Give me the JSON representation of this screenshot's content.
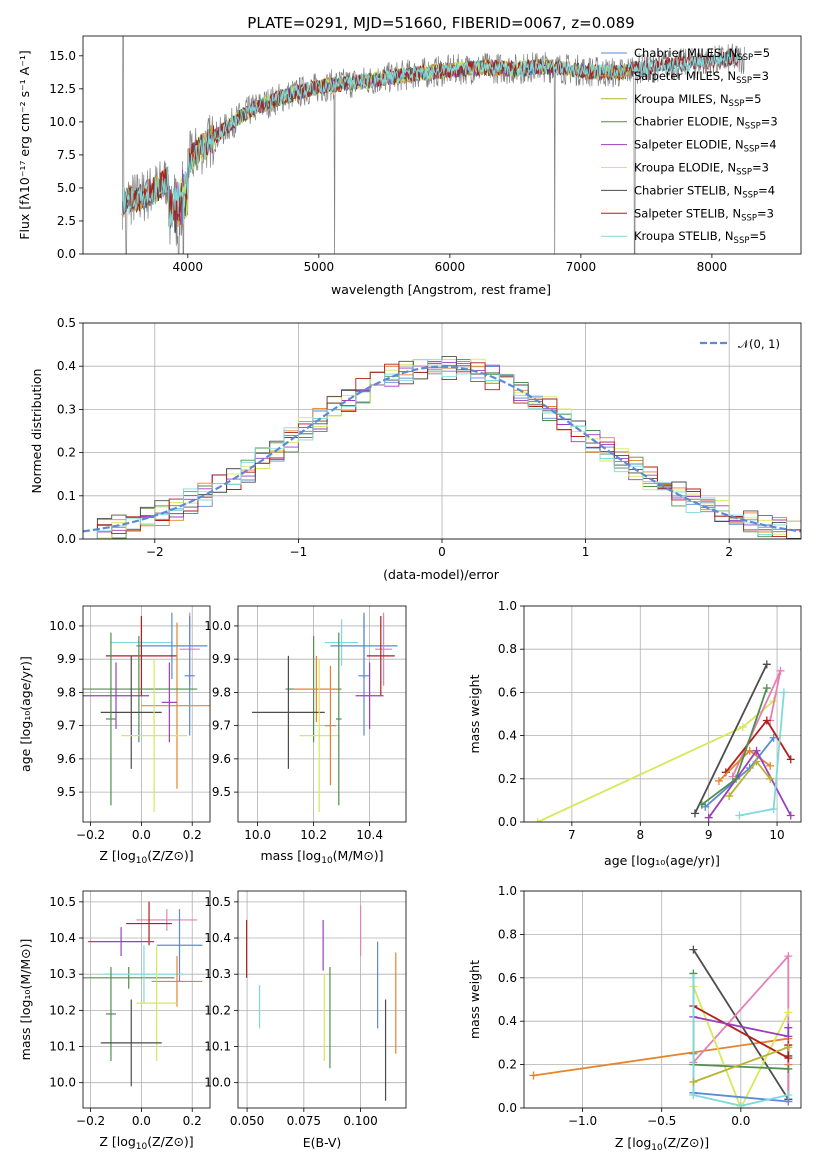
{
  "colors": {
    "chabrier_miles": "#5b8ad6",
    "salpeter_miles": "#e6852b",
    "kroupa_miles": "#b8b22e",
    "chabrier_elodie": "#4f8f4f",
    "salpeter_elodie": "#9a3fbf",
    "kroupa_elodie": "#d7e85a",
    "chabrier_stelib": "#4d4d4d",
    "salpeter_stelib": "#b01e1e",
    "kroupa_stelib": "#7fd9dc",
    "pink": "#e77fb5",
    "normal": "#5b8ad6",
    "data": "#808080"
  },
  "chart_data": [
    {
      "id": "spectrum",
      "type": "line",
      "title": "PLATE=0291, MJD=51660, FIBERID=0067, z=0.089",
      "xlabel": "wavelength [Angstrom, rest frame]",
      "ylabel": "Flux [fλ10⁻¹⁷ erg cm⁻² s⁻¹ A⁻¹]",
      "xlim": [
        3200,
        8680
      ],
      "ylim": [
        0,
        16.5
      ],
      "xticks": [
        "4000",
        "5000",
        "6000",
        "7000",
        "8000"
      ],
      "yticks": [
        "0.0",
        "2.5",
        "5.0",
        "7.5",
        "10.0",
        "12.5",
        "15.0"
      ],
      "legend_position": "right",
      "legend": [
        {
          "lib": "Chabrier MILES, N",
          "sub": "SSP",
          "eq": "=5"
        },
        {
          "lib": "Salpeter MILES, N",
          "sub": "SSP",
          "eq": "=3"
        },
        {
          "lib": "Kroupa MILES, N",
          "sub": "SSP",
          "eq": "=5"
        },
        {
          "lib": "Chabrier ELODIE, N",
          "sub": "SSP",
          "eq": "=3"
        },
        {
          "lib": "Salpeter ELODIE, N",
          "sub": "SSP",
          "eq": "=4"
        },
        {
          "lib": "Kroupa ELODIE, N",
          "sub": "SSP",
          "eq": "=3"
        },
        {
          "lib": "Chabrier STELIB, N",
          "sub": "SSP",
          "eq": "=4"
        },
        {
          "lib": "Salpeter STELIB, N",
          "sub": "SSP",
          "eq": "=3"
        },
        {
          "lib": "Kroupa STELIB, N",
          "sub": "SSP",
          "eq": "=5"
        }
      ],
      "continuum": {
        "x": [
          3500,
          3650,
          3800,
          3900,
          4000,
          4100,
          4200,
          4300,
          4400,
          4500,
          4700,
          4900,
          5100,
          5300,
          5500,
          5700,
          5900,
          6100,
          6300,
          6500,
          6700,
          6900,
          7100,
          7300,
          7400,
          7500,
          7600,
          7800,
          8000,
          8200
        ],
        "y": [
          4.0,
          4.3,
          5.2,
          6.2,
          7.0,
          8.0,
          8.8,
          9.6,
          10.4,
          11.0,
          11.8,
          12.4,
          12.8,
          13.0,
          13.3,
          13.6,
          13.8,
          14.0,
          14.1,
          14.0,
          14.2,
          14.0,
          13.8,
          13.7,
          14.0,
          14.1,
          14.2,
          14.4,
          14.6,
          14.8
        ]
      }
    },
    {
      "id": "residuals",
      "type": "histogram",
      "xlabel": "(data-model)/error",
      "ylabel": "Normed distribution",
      "xlim": [
        -2.5,
        2.5
      ],
      "ylim": [
        0,
        0.5
      ],
      "xticks": [
        "−2",
        "−1",
        "0",
        "1",
        "2"
      ],
      "yticks": [
        "0.0",
        "0.1",
        "0.2",
        "0.3",
        "0.4",
        "0.5"
      ],
      "legend": "𝒩(0, 1)",
      "legend_position": "top-right",
      "bin_width": 0.1,
      "normal": {
        "mu": 0,
        "sigma": 1
      }
    },
    {
      "id": "age-vs-Z",
      "type": "scatter",
      "xlabel_main": "Z [log",
      "xlabel_sub": "10",
      "xlabel_tail": "(Z/Z⊙)]",
      "ylabel": "age  [log₁₀(age/yr)]",
      "xlim": [
        -0.23,
        0.27
      ],
      "ylim": [
        9.41,
        10.06
      ],
      "xticks": [
        "−0.2",
        "0.0",
        "0.2"
      ],
      "yticks": [
        "9.5",
        "9.6",
        "9.7",
        "9.8",
        "9.9",
        "10.0"
      ],
      "points": [
        {
          "x": 0.0,
          "y": 9.95,
          "xerr": 0.12,
          "yerr": 0.07,
          "c": "kroupa_stelib"
        },
        {
          "x": 0.12,
          "y": 9.94,
          "xerr": 0.14,
          "yerr": 0.1,
          "c": "chabrier_miles"
        },
        {
          "x": 0.19,
          "y": 9.93,
          "xerr": 0.04,
          "yerr": 0.11,
          "c": "pink"
        },
        {
          "x": 0.0,
          "y": 9.91,
          "xerr": 0.14,
          "yerr": 0.12,
          "c": "salpeter_stelib"
        },
        {
          "x": 0.19,
          "y": 9.85,
          "xerr": 0.02,
          "yerr": 0.18,
          "c": "chabrier_miles"
        },
        {
          "x": 0.14,
          "y": 9.76,
          "xerr": 0.14,
          "yerr": 0.25,
          "c": "salpeter_miles"
        },
        {
          "x": -0.01,
          "y": 9.81,
          "xerr": 0.23,
          "yerr": 0.16,
          "c": "chabrier_elodie"
        },
        {
          "x": -0.1,
          "y": 9.79,
          "xerr": 0.13,
          "yerr": 0.1,
          "c": "salpeter_elodie"
        },
        {
          "x": -0.04,
          "y": 9.74,
          "xerr": 0.12,
          "yerr": 0.17,
          "c": "chabrier_stelib"
        },
        {
          "x": 0.05,
          "y": 9.67,
          "xerr": 0.13,
          "yerr": 0.23,
          "c": "kroupa_elodie"
        },
        {
          "x": 0.11,
          "y": 9.77,
          "xerr": 0.03,
          "yerr": 0.12,
          "c": "salpeter_elodie"
        },
        {
          "x": -0.12,
          "y": 9.72,
          "xerr": 0.02,
          "yerr": 0.26,
          "c": "chabrier_elodie"
        }
      ]
    },
    {
      "id": "age-vs-mass",
      "type": "scatter",
      "xlabel_main": "mass [log",
      "xlabel_sub": "10",
      "xlabel_tail": "(M/M⊙)]",
      "xlim": [
        9.93,
        10.53
      ],
      "ylim": [
        9.41,
        10.06
      ],
      "xticks": [
        "10.0",
        "10.2",
        "10.4"
      ],
      "yticks": [
        "9.5",
        "9.6",
        "9.7",
        "9.8",
        "9.9",
        "10.0"
      ],
      "points": [
        {
          "x": 10.3,
          "y": 9.95,
          "xerr": 0.06,
          "yerr": 0.07,
          "c": "kroupa_stelib"
        },
        {
          "x": 10.38,
          "y": 9.94,
          "xerr": 0.12,
          "yerr": 0.1,
          "c": "chabrier_miles"
        },
        {
          "x": 10.45,
          "y": 9.93,
          "xerr": 0.03,
          "yerr": 0.11,
          "c": "pink"
        },
        {
          "x": 10.44,
          "y": 9.91,
          "xerr": 0.05,
          "yerr": 0.12,
          "c": "salpeter_stelib"
        },
        {
          "x": 10.38,
          "y": 9.85,
          "xerr": 0.02,
          "yerr": 0.18,
          "c": "chabrier_miles"
        },
        {
          "x": 10.2,
          "y": 9.81,
          "xerr": 0.1,
          "yerr": 0.16,
          "c": "chabrier_elodie"
        },
        {
          "x": 10.21,
          "y": 9.81,
          "xerr": 0.08,
          "yerr": 0.1,
          "c": "salpeter_miles"
        },
        {
          "x": 10.4,
          "y": 9.79,
          "xerr": 0.05,
          "yerr": 0.1,
          "c": "salpeter_elodie"
        },
        {
          "x": 10.11,
          "y": 9.74,
          "xerr": 0.13,
          "yerr": 0.17,
          "c": "chabrier_stelib"
        },
        {
          "x": 10.22,
          "y": 9.67,
          "xerr": 0.07,
          "yerr": 0.23,
          "c": "kroupa_elodie"
        },
        {
          "x": 10.26,
          "y": 9.7,
          "xerr": 0.02,
          "yerr": 0.18,
          "c": "salpeter_miles"
        },
        {
          "x": 10.29,
          "y": 9.72,
          "xerr": 0.01,
          "yerr": 0.26,
          "c": "chabrier_elodie"
        }
      ]
    },
    {
      "id": "weight-vs-age",
      "type": "line",
      "xlabel": "age  [log₁₀(age/yr)]",
      "ylabel": "mass weight",
      "xlim": [
        6.3,
        10.35
      ],
      "ylim": [
        0,
        1
      ],
      "xticks": [
        "7",
        "8",
        "9",
        "10"
      ],
      "yticks": [
        "0.0",
        "0.2",
        "0.4",
        "0.6",
        "0.8",
        "1.0"
      ],
      "series": [
        {
          "c": "kroupa_elodie",
          "x": [
            6.5,
            9.5,
            9.95
          ],
          "y": [
            0.0,
            0.44,
            0.56
          ]
        },
        {
          "c": "chabrier_stelib",
          "x": [
            8.8,
            9.85
          ],
          "y": [
            0.04,
            0.73
          ]
        },
        {
          "c": "pink",
          "x": [
            9.35,
            10.05,
            9.9
          ],
          "y": [
            0.21,
            0.7,
            0.47
          ]
        },
        {
          "c": "salpeter_stelib",
          "x": [
            9.25,
            9.85,
            10.2
          ],
          "y": [
            0.23,
            0.47,
            0.29
          ]
        },
        {
          "c": "salpeter_miles",
          "x": [
            9.15,
            9.6,
            9.9
          ],
          "y": [
            0.19,
            0.33,
            0.26
          ]
        },
        {
          "c": "chabrier_miles",
          "x": [
            8.95,
            9.6,
            9.95
          ],
          "y": [
            0.07,
            0.25,
            0.39
          ]
        },
        {
          "c": "salpeter_elodie",
          "x": [
            9.0,
            9.7,
            10.2
          ],
          "y": [
            0.02,
            0.33,
            0.03
          ]
        },
        {
          "c": "chabrier_elodie",
          "x": [
            8.9,
            9.4,
            9.85
          ],
          "y": [
            0.08,
            0.2,
            0.62
          ]
        },
        {
          "c": "kroupa_stelib",
          "x": [
            9.45,
            9.95,
            10.1
          ],
          "y": [
            0.03,
            0.06,
            0.6
          ]
        },
        {
          "c": "kroupa_miles",
          "x": [
            9.3,
            9.7,
            9.9
          ],
          "y": [
            0.12,
            0.28,
            0.2
          ]
        }
      ]
    },
    {
      "id": "mass-vs-Z",
      "type": "scatter",
      "xlabel_main": "Z [log",
      "xlabel_sub": "10",
      "xlabel_tail": "(Z/Z⊙)]",
      "ylabel": "mass [log₁₀(M/M⊙)]",
      "xlim": [
        -0.23,
        0.27
      ],
      "ylim": [
        9.93,
        10.53
      ],
      "xticks": [
        "−0.2",
        "0.0",
        "0.2"
      ],
      "yticks": [
        "10.0",
        "10.1",
        "10.2",
        "10.3",
        "10.4",
        "10.5"
      ],
      "points": [
        {
          "x": 0.1,
          "y": 10.45,
          "xerr": 0.12,
          "yerr": 0.03,
          "c": "pink"
        },
        {
          "x": 0.03,
          "y": 10.44,
          "xerr": 0.09,
          "yerr": 0.06,
          "c": "salpeter_stelib"
        },
        {
          "x": -0.08,
          "y": 10.39,
          "xerr": 0.13,
          "yerr": 0.04,
          "c": "salpeter_elodie"
        },
        {
          "x": 0.15,
          "y": 10.38,
          "xerr": 0.09,
          "yerr": 0.1,
          "c": "chabrier_miles"
        },
        {
          "x": -0.05,
          "y": 10.29,
          "xerr": 0.18,
          "yerr": 0.03,
          "c": "chabrier_elodie"
        },
        {
          "x": 0.01,
          "y": 10.3,
          "xerr": 0.16,
          "yerr": 0.08,
          "c": "kroupa_stelib"
        },
        {
          "x": 0.14,
          "y": 10.28,
          "xerr": 0.1,
          "yerr": 0.07,
          "c": "salpeter_miles"
        },
        {
          "x": 0.06,
          "y": 10.22,
          "xerr": 0.08,
          "yerr": 0.16,
          "c": "kroupa_elodie"
        },
        {
          "x": -0.12,
          "y": 10.19,
          "xerr": 0.02,
          "yerr": 0.13,
          "c": "chabrier_elodie"
        },
        {
          "x": -0.04,
          "y": 10.11,
          "xerr": 0.12,
          "yerr": 0.12,
          "c": "chabrier_stelib"
        }
      ]
    },
    {
      "id": "mass-vs-EBV",
      "type": "scatter",
      "xlabel": "E(B-V)",
      "xlim": [
        0.046,
        0.12
      ],
      "ylim": [
        9.93,
        10.53
      ],
      "xticks": [
        "0.050",
        "0.075",
        "0.100"
      ],
      "yticks": [
        "10.0",
        "10.1",
        "10.2",
        "10.3",
        "10.4",
        "10.5"
      ],
      "points": [
        {
          "x": 0.0498,
          "y": 10.37,
          "yerr": 0.08,
          "c": "salpeter_stelib"
        },
        {
          "x": 0.0555,
          "y": 10.21,
          "yerr": 0.06,
          "c": "kroupa_stelib"
        },
        {
          "x": 0.0835,
          "y": 10.38,
          "yerr": 0.07,
          "c": "salpeter_elodie"
        },
        {
          "x": 0.084,
          "y": 10.18,
          "yerr": 0.12,
          "c": "kroupa_elodie"
        },
        {
          "x": 0.0865,
          "y": 10.18,
          "yerr": 0.14,
          "c": "chabrier_elodie"
        },
        {
          "x": 0.1,
          "y": 10.42,
          "yerr": 0.07,
          "c": "pink"
        },
        {
          "x": 0.1075,
          "y": 10.27,
          "yerr": 0.12,
          "c": "chabrier_miles"
        },
        {
          "x": 0.111,
          "y": 10.09,
          "yerr": 0.14,
          "c": "chabrier_stelib"
        },
        {
          "x": 0.1155,
          "y": 10.22,
          "yerr": 0.14,
          "c": "salpeter_miles"
        }
      ]
    },
    {
      "id": "weight-vs-Z",
      "type": "line",
      "xlabel_main": "Z [log",
      "xlabel_sub": "10",
      "xlabel_tail": "(Z/Z⊙)]",
      "ylabel": "mass weight",
      "xlim": [
        -1.37,
        0.38
      ],
      "ylim": [
        0,
        1
      ],
      "xticks": [
        "−1.0",
        "−0.5",
        "0.0"
      ],
      "yticks": [
        "0.0",
        "0.2",
        "0.4",
        "0.6",
        "0.8",
        "1.0"
      ],
      "series": [
        {
          "c": "salpeter_miles",
          "x": [
            -1.31,
            0.3,
            0.3
          ],
          "y": [
            0.15,
            0.32,
            0.2
          ]
        },
        {
          "c": "chabrier_stelib",
          "x": [
            -0.3,
            0.3,
            0.3
          ],
          "y": [
            0.73,
            0.04,
            0.24
          ]
        },
        {
          "c": "pink",
          "x": [
            -0.3,
            0.3,
            0.3
          ],
          "y": [
            0.21,
            0.7,
            0.03
          ]
        },
        {
          "c": "kroupa_elodie",
          "x": [
            -0.3,
            0.0,
            0.3
          ],
          "y": [
            0.56,
            0.0,
            0.44
          ]
        },
        {
          "c": "salpeter_stelib",
          "x": [
            -0.3,
            0.3,
            0.3
          ],
          "y": [
            0.47,
            0.23,
            0.29
          ]
        },
        {
          "c": "salpeter_elodie",
          "x": [
            -0.3,
            0.3,
            0.3
          ],
          "y": [
            0.42,
            0.33,
            0.37
          ]
        },
        {
          "c": "chabrier_miles",
          "x": [
            -0.3,
            -0.3,
            0.3
          ],
          "y": [
            0.25,
            0.07,
            0.03
          ]
        },
        {
          "c": "chabrier_elodie",
          "x": [
            -0.3,
            -0.3,
            0.3
          ],
          "y": [
            0.62,
            0.2,
            0.18
          ]
        },
        {
          "c": "kroupa_stelib",
          "x": [
            -0.3,
            -0.3,
            0.0,
            0.3
          ],
          "y": [
            0.6,
            0.06,
            0.01,
            0.06
          ]
        },
        {
          "c": "kroupa_miles",
          "x": [
            -0.3,
            0.3
          ],
          "y": [
            0.12,
            0.28
          ]
        }
      ]
    }
  ]
}
